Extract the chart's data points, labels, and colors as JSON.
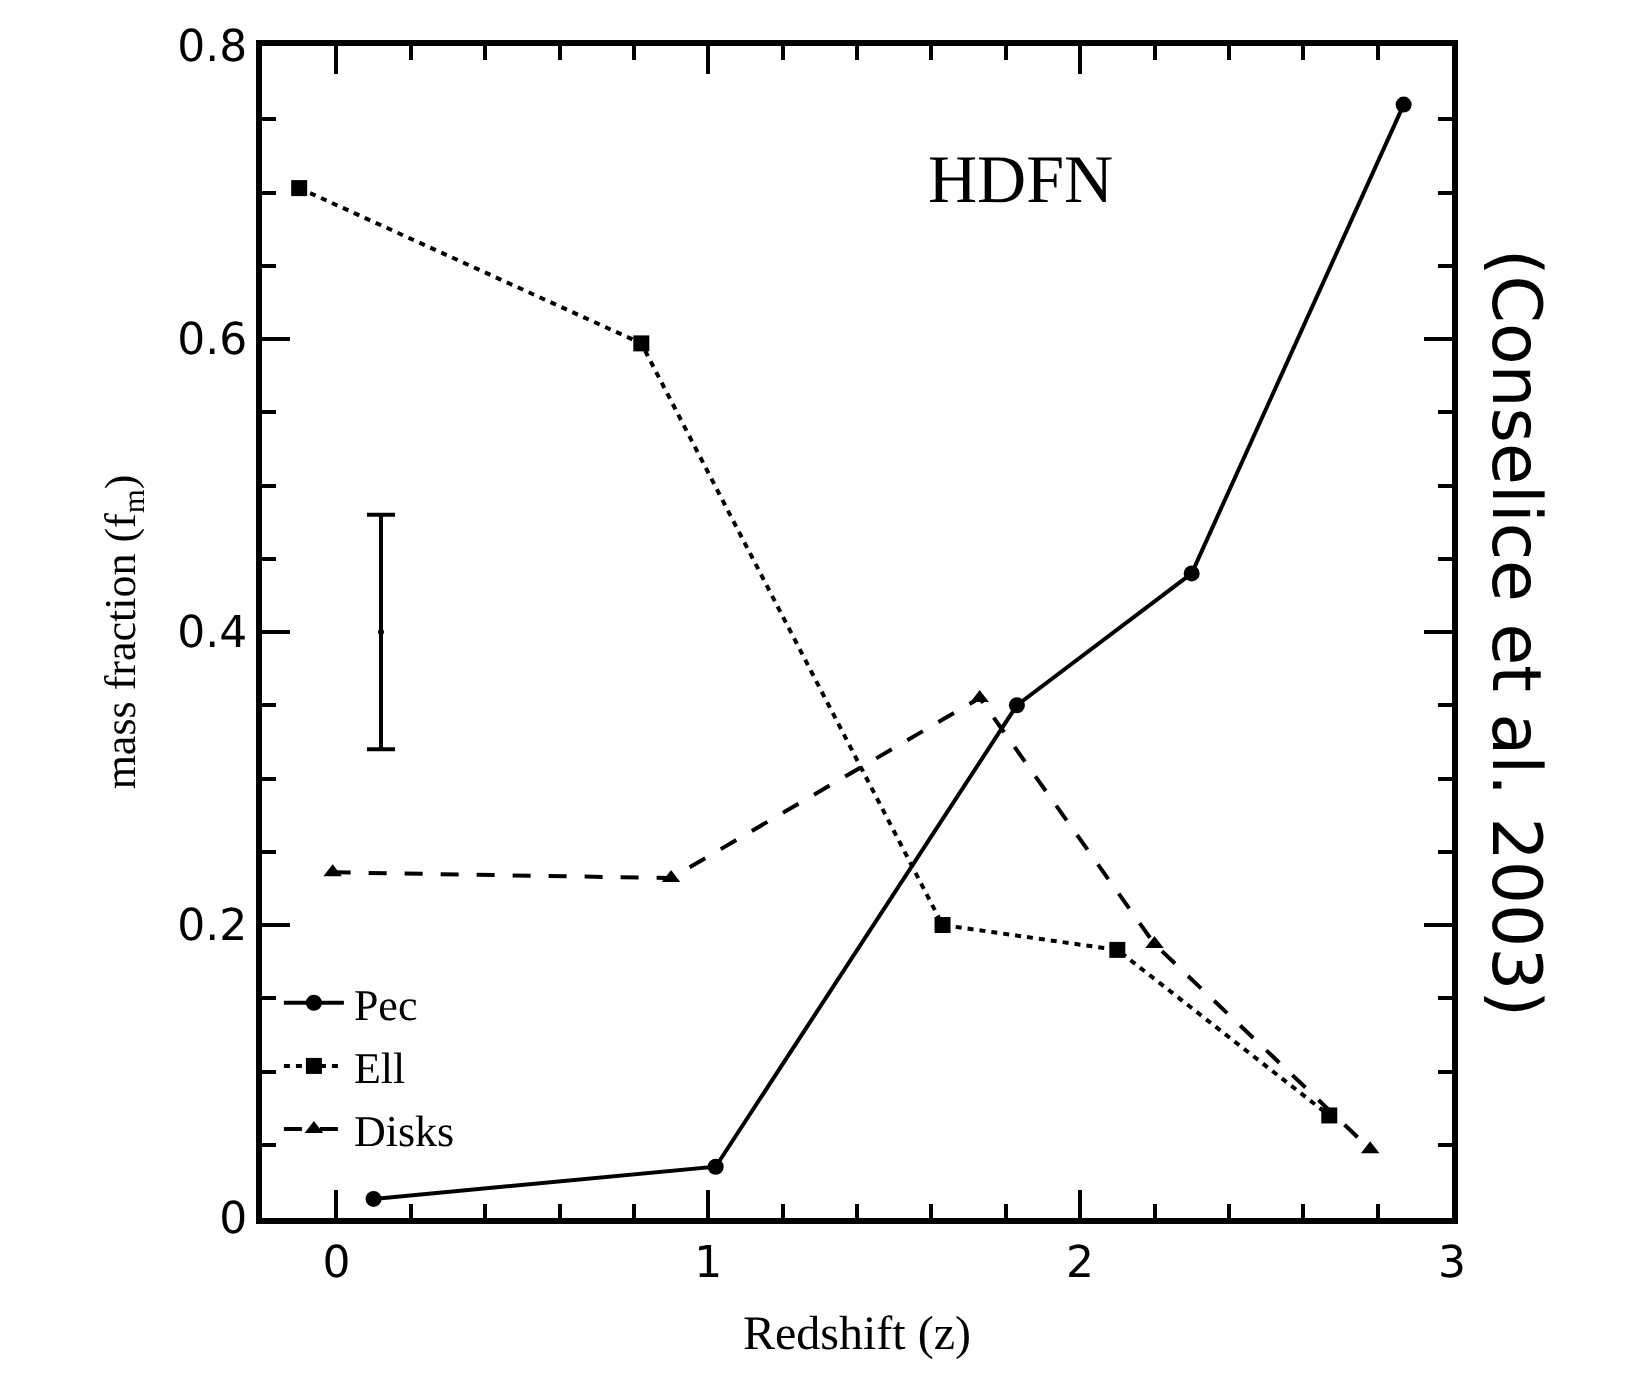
{
  "chart_data": {
    "type": "line",
    "xlabel": "Redshift (z)",
    "ylabel": "mass fraction (f$_{m}$)",
    "xlim": [
      -0.2,
      3
    ],
    "ylim": [
      0,
      0.8
    ],
    "xticks": [
      0,
      1,
      2,
      3
    ],
    "yticks": [
      0,
      0.2,
      0.4,
      0.6,
      0.8
    ],
    "legend": "bottom left",
    "annotations": [
      "HDFN",
      "(Conselice et al. 2003)"
    ],
    "series": [
      {
        "name": "Pec",
        "color": "#000000",
        "marker": "circle",
        "line_style": "solid",
        "x": [
          0.1,
          1.02,
          1.83,
          2.3,
          2.87
        ],
        "values": [
          0.013,
          0.035,
          0.35,
          0.44,
          0.76
        ]
      },
      {
        "name": "Ell",
        "color": "#000000",
        "marker": "square",
        "line_style": "dotted",
        "x": [
          -0.1,
          0.82,
          1.63,
          2.1,
          2.67
        ],
        "values": [
          0.703,
          0.597,
          0.2,
          0.183,
          0.07
        ]
      },
      {
        "name": "Disks",
        "color": "#000000",
        "marker": "triangle",
        "line_style": "dashed",
        "x": [
          -0.01,
          0.9,
          1.73,
          2.2,
          2.78
        ],
        "values": [
          0.236,
          0.232,
          0.355,
          0.187,
          0.047
        ]
      },
      {
        "type": "scatter",
        "color": "#000000",
        "marker": "none",
        "x": [
          0.12
        ],
        "values": [
          0.4
        ],
        "errors": [
          [
            0.32,
            0.48
          ]
        ]
      }
    ]
  }
}
